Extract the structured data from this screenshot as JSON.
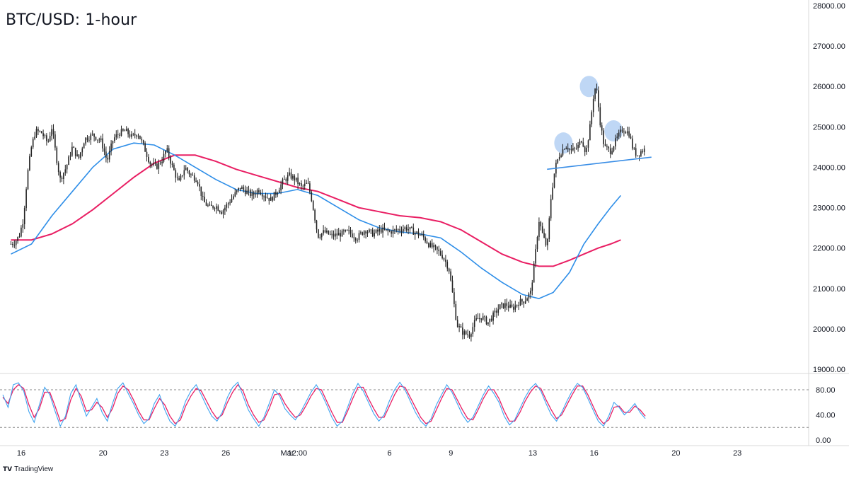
{
  "title": "BTC/USD: 1-hour",
  "brand": {
    "logo_text": "TV",
    "label": "TradingView"
  },
  "colors": {
    "candle": "#222222",
    "ma_fast": "#2e8ee8",
    "ma_slow": "#e91e63",
    "stoch_k": "#3fa3f0",
    "stoch_d": "#e91e63",
    "neckline": "#3a8ee6",
    "highlight": "#a9c9f2",
    "grid": "#e5e5e5",
    "axis_text": "#131722"
  },
  "chart_data": [
    {
      "type": "line",
      "name": "price-panel",
      "title": "BTC/USD: 1-hour",
      "y_ticks": [
        "28000.00",
        "27000.00",
        "26000.00",
        "25000.00",
        "24000.00",
        "23000.00",
        "22000.00",
        "21000.00",
        "20000.00",
        "19000.00"
      ],
      "ylim": [
        19000,
        28000
      ],
      "x_ticks": [
        {
          "label": "16",
          "day": 0
        },
        {
          "label": "20",
          "day": 4
        },
        {
          "label": "23",
          "day": 7
        },
        {
          "label": "26",
          "day": 10
        },
        {
          "label": "Mar",
          "day": 13
        },
        {
          "label": "12:00",
          "day": 13.5
        },
        {
          "label": "6",
          "day": 18
        },
        {
          "label": "9",
          "day": 21
        },
        {
          "label": "13",
          "day": 25
        },
        {
          "label": "16",
          "day": 28
        },
        {
          "label": "20",
          "day": 32
        },
        {
          "label": "23",
          "day": 35
        }
      ],
      "xlim": [
        -0.5,
        38.5
      ],
      "price_path": [
        [
          -0.5,
          22100
        ],
        [
          -0.3,
          22150
        ],
        [
          -0.1,
          22300
        ],
        [
          0.1,
          22700
        ],
        [
          0.3,
          23800
        ],
        [
          0.5,
          24500
        ],
        [
          0.7,
          24900
        ],
        [
          1.0,
          24850
        ],
        [
          1.3,
          24600
        ],
        [
          1.5,
          25000
        ],
        [
          1.7,
          24300
        ],
        [
          1.9,
          23700
        ],
        [
          2.2,
          24000
        ],
        [
          2.5,
          24500
        ],
        [
          2.8,
          24200
        ],
        [
          3.1,
          24700
        ],
        [
          3.5,
          24800
        ],
        [
          3.9,
          24650
        ],
        [
          4.0,
          24500
        ],
        [
          4.2,
          24150
        ],
        [
          4.5,
          24700
        ],
        [
          4.8,
          24850
        ],
        [
          5.1,
          24900
        ],
        [
          5.4,
          24750
        ],
        [
          5.7,
          24850
        ],
        [
          6.0,
          24500
        ],
        [
          6.3,
          24100
        ],
        [
          6.6,
          24000
        ],
        [
          6.9,
          24200
        ],
        [
          7.1,
          24450
        ],
        [
          7.4,
          24000
        ],
        [
          7.7,
          23600
        ],
        [
          8.0,
          24000
        ],
        [
          8.3,
          23800
        ],
        [
          8.6,
          23700
        ],
        [
          8.9,
          23150
        ],
        [
          9.2,
          23000
        ],
        [
          9.5,
          23050
        ],
        [
          9.8,
          22900
        ],
        [
          10.1,
          23100
        ],
        [
          10.4,
          23300
        ],
        [
          10.7,
          23500
        ],
        [
          11.0,
          23400
        ],
        [
          11.3,
          23300
        ],
        [
          11.6,
          23450
        ],
        [
          11.9,
          23300
        ],
        [
          12.2,
          23200
        ],
        [
          12.5,
          23400
        ],
        [
          12.8,
          23650
        ],
        [
          13.1,
          23800
        ],
        [
          13.4,
          23700
        ],
        [
          13.7,
          23500
        ],
        [
          14.0,
          23600
        ],
        [
          14.2,
          23200
        ],
        [
          14.5,
          22300
        ],
        [
          14.8,
          22400
        ],
        [
          15.2,
          22300
        ],
        [
          15.6,
          22350
        ],
        [
          16.0,
          22400
        ],
        [
          16.4,
          22250
        ],
        [
          16.8,
          22450
        ],
        [
          17.2,
          22350
        ],
        [
          17.6,
          22450
        ],
        [
          18.0,
          22400
        ],
        [
          18.4,
          22450
        ],
        [
          18.8,
          22500
        ],
        [
          19.2,
          22400
        ],
        [
          19.6,
          22300
        ],
        [
          20.0,
          22050
        ],
        [
          20.3,
          21950
        ],
        [
          20.6,
          21800
        ],
        [
          20.9,
          21500
        ],
        [
          21.1,
          20800
        ],
        [
          21.3,
          20100
        ],
        [
          21.6,
          19900
        ],
        [
          21.9,
          19850
        ],
        [
          22.2,
          20200
        ],
        [
          22.5,
          20300
        ],
        [
          22.8,
          20150
        ],
        [
          23.1,
          20350
        ],
        [
          23.4,
          20550
        ],
        [
          23.7,
          20600
        ],
        [
          24.0,
          20500
        ],
        [
          24.3,
          20650
        ],
        [
          24.6,
          20700
        ],
        [
          24.9,
          20900
        ],
        [
          25.1,
          21700
        ],
        [
          25.3,
          22700
        ],
        [
          25.5,
          22300
        ],
        [
          25.7,
          22000
        ],
        [
          25.9,
          23300
        ],
        [
          26.1,
          24000
        ],
        [
          26.3,
          24300
        ],
        [
          26.6,
          24550
        ],
        [
          26.9,
          24400
        ],
        [
          27.2,
          24500
        ],
        [
          27.4,
          24700
        ],
        [
          27.6,
          24350
        ],
        [
          27.8,
          25000
        ],
        [
          28.0,
          25900
        ],
        [
          28.1,
          26000
        ],
        [
          28.3,
          25100
        ],
        [
          28.5,
          24500
        ],
        [
          28.8,
          24400
        ],
        [
          29.1,
          24700
        ],
        [
          29.4,
          24950
        ],
        [
          29.7,
          24850
        ],
        [
          29.9,
          24450
        ],
        [
          30.1,
          24300
        ],
        [
          30.3,
          24400
        ],
        [
          30.5,
          24450
        ]
      ],
      "ma_fast_path": [
        [
          -0.5,
          21850
        ],
        [
          0.5,
          22100
        ],
        [
          1.5,
          22800
        ],
        [
          2.5,
          23400
        ],
        [
          3.5,
          24000
        ],
        [
          4.5,
          24450
        ],
        [
          5.5,
          24600
        ],
        [
          6.5,
          24550
        ],
        [
          7.5,
          24300
        ],
        [
          8.5,
          24000
        ],
        [
          9.5,
          23700
        ],
        [
          10.5,
          23450
        ],
        [
          11.5,
          23350
        ],
        [
          12.5,
          23350
        ],
        [
          13.5,
          23450
        ],
        [
          14.5,
          23300
        ],
        [
          15.5,
          23000
        ],
        [
          16.5,
          22700
        ],
        [
          17.5,
          22500
        ],
        [
          18.5,
          22400
        ],
        [
          19.5,
          22350
        ],
        [
          20.5,
          22250
        ],
        [
          21.5,
          21900
        ],
        [
          22.5,
          21500
        ],
        [
          23.5,
          21150
        ],
        [
          24.5,
          20850
        ],
        [
          25.3,
          20750
        ],
        [
          26.0,
          20900
        ],
        [
          26.8,
          21400
        ],
        [
          27.5,
          22100
        ],
        [
          28.2,
          22600
        ],
        [
          28.8,
          23000
        ],
        [
          29.3,
          23300
        ]
      ],
      "ma_slow_path": [
        [
          -0.5,
          22200
        ],
        [
          0.5,
          22200
        ],
        [
          1.5,
          22350
        ],
        [
          2.5,
          22600
        ],
        [
          3.5,
          22950
        ],
        [
          4.5,
          23350
        ],
        [
          5.5,
          23750
        ],
        [
          6.5,
          24100
        ],
        [
          7.5,
          24300
        ],
        [
          8.5,
          24300
        ],
        [
          9.5,
          24150
        ],
        [
          10.5,
          23950
        ],
        [
          11.5,
          23800
        ],
        [
          12.5,
          23650
        ],
        [
          13.5,
          23500
        ],
        [
          14.5,
          23400
        ],
        [
          15.5,
          23200
        ],
        [
          16.5,
          23000
        ],
        [
          17.5,
          22900
        ],
        [
          18.5,
          22800
        ],
        [
          19.5,
          22750
        ],
        [
          20.5,
          22650
        ],
        [
          21.5,
          22450
        ],
        [
          22.5,
          22150
        ],
        [
          23.5,
          21850
        ],
        [
          24.5,
          21650
        ],
        [
          25.3,
          21550
        ],
        [
          26.0,
          21550
        ],
        [
          26.8,
          21700
        ],
        [
          27.5,
          21850
        ],
        [
          28.2,
          22000
        ],
        [
          28.8,
          22100
        ],
        [
          29.3,
          22200
        ]
      ],
      "neckline": [
        [
          25.7,
          23950
        ],
        [
          30.8,
          24250
        ]
      ],
      "highlights": [
        {
          "day": 26.5,
          "price": 24600
        },
        {
          "day": 27.75,
          "price": 26000
        },
        {
          "day": 28.95,
          "price": 24900
        }
      ],
      "grid": false,
      "legend": "none"
    },
    {
      "type": "line",
      "name": "stochastic-panel",
      "y_ticks": [
        "80.00",
        "40.00",
        "0.00"
      ],
      "ylim": [
        0,
        100
      ],
      "levels": [
        80,
        20
      ],
      "series": [
        {
          "values": [
            72,
            52,
            88,
            91,
            78,
            45,
            28,
            56,
            84,
            72,
            46,
            22,
            38,
            74,
            88,
            62,
            38,
            52,
            66,
            44,
            30,
            58,
            82,
            91,
            74,
            58,
            40,
            26,
            34,
            58,
            72,
            48,
            30,
            22,
            38,
            62,
            78,
            88,
            72,
            54,
            38,
            30,
            44,
            68,
            84,
            92,
            70,
            48,
            34,
            22,
            36,
            58,
            80,
            70,
            50,
            40,
            32,
            44,
            60,
            76,
            88,
            74,
            56,
            36,
            22,
            30,
            52,
            74,
            90,
            78,
            60,
            42,
            30,
            40,
            62,
            80,
            92,
            80,
            62,
            44,
            30,
            22,
            34,
            56,
            72,
            88,
            76,
            58,
            40,
            28,
            36,
            54,
            72,
            86,
            74,
            60,
            38,
            24,
            32,
            50,
            68,
            82,
            90,
            78,
            58,
            40,
            30,
            44,
            62,
            78,
            90,
            84,
            66,
            48,
            30,
            22,
            38,
            60,
            52,
            40,
            48,
            58,
            44,
            34
          ]
        },
        {
          "values": [
            68,
            58,
            80,
            88,
            82,
            56,
            36,
            50,
            76,
            76,
            54,
            30,
            34,
            64,
            82,
            70,
            46,
            48,
            60,
            52,
            36,
            50,
            74,
            86,
            80,
            64,
            46,
            32,
            32,
            50,
            66,
            56,
            38,
            26,
            32,
            54,
            70,
            82,
            78,
            62,
            46,
            34,
            40,
            60,
            76,
            88,
            78,
            56,
            40,
            28,
            32,
            50,
            72,
            74,
            58,
            46,
            36,
            40,
            54,
            70,
            82,
            80,
            62,
            44,
            28,
            28,
            46,
            66,
            84,
            84,
            66,
            50,
            36,
            36,
            54,
            72,
            86,
            84,
            68,
            52,
            36,
            26,
            30,
            48,
            66,
            82,
            80,
            64,
            48,
            34,
            32,
            48,
            66,
            80,
            80,
            66,
            46,
            30,
            30,
            44,
            62,
            76,
            86,
            82,
            64,
            48,
            34,
            40,
            56,
            72,
            86,
            86,
            72,
            54,
            36,
            26,
            32,
            52,
            54,
            44,
            44,
            54,
            48,
            38
          ]
        }
      ],
      "grid": false,
      "legend": "none"
    }
  ]
}
